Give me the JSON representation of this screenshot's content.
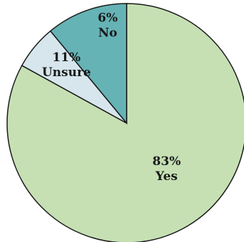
{
  "chart_data": {
    "type": "pie",
    "title": "",
    "slices": [
      {
        "label": "Yes",
        "value": 83,
        "value_label": "83%",
        "color": "#c6e0b4"
      },
      {
        "label": "No",
        "value": 6,
        "value_label": "6%",
        "color": "#d6e6ec"
      },
      {
        "label": "Unsure",
        "value": 11,
        "value_label": "11%",
        "color": "#65b3b5"
      }
    ],
    "start_angle_deg": 0,
    "direction": "clockwise",
    "legend": "none",
    "labels_inside": true
  }
}
